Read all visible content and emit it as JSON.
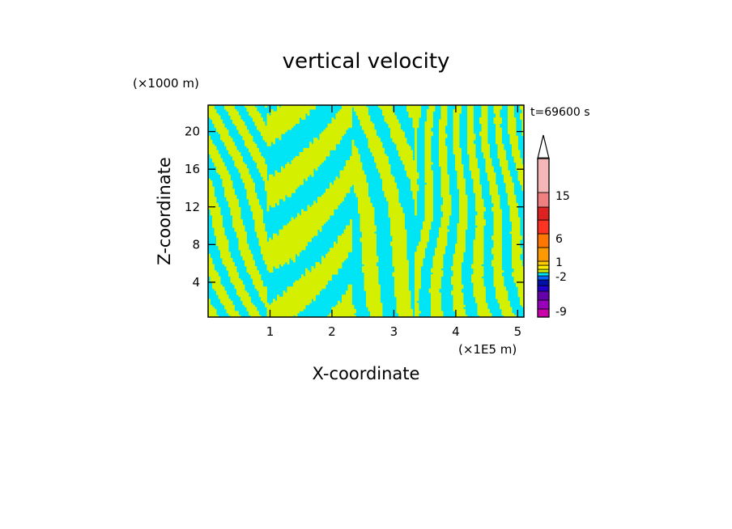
{
  "chart_data": {
    "type": "heatmap",
    "title": "vertical velocity",
    "xlabel": "X-coordinate",
    "ylabel": "Z-coordinate",
    "x_unit": "(×1E5 m)",
    "y_unit": "(×1000 m)",
    "time_label": "t=69600 s",
    "xlim": [
      0.0,
      5.1
    ],
    "ylim": [
      0.3,
      22.8
    ],
    "x_ticks": [
      1,
      2,
      3,
      4,
      5
    ],
    "y_ticks": [
      4,
      8,
      12,
      16,
      20
    ],
    "field_description": "alternating banded pattern of two contour classes (cyan and yellow-green) across the whole domain",
    "dominant_levels": [
      {
        "name": "negative-small",
        "color": "#00e5f5"
      },
      {
        "name": "positive-small",
        "color": "#d4f000"
      }
    ],
    "colorbar": {
      "labels": [
        "15",
        "6",
        "1",
        "-2",
        "-9"
      ],
      "segments": [
        {
          "color": "#cc00aa"
        },
        {
          "color": "#9900bb"
        },
        {
          "color": "#6600aa"
        },
        {
          "color": "#2200cc"
        },
        {
          "color": "#0011aa"
        },
        {
          "color": "#0066ff"
        },
        {
          "color": "#00e5f5"
        },
        {
          "color": "#d4f000"
        },
        {
          "color": "#ffee00"
        },
        {
          "color": "#ffcc00"
        },
        {
          "color": "#ff9900"
        },
        {
          "color": "#ff7700"
        },
        {
          "color": "#ff3322"
        },
        {
          "color": "#dd2222"
        },
        {
          "color": "#f08080"
        },
        {
          "color": "#f4b6b6"
        }
      ],
      "overflow_color": "#ffffff"
    }
  }
}
